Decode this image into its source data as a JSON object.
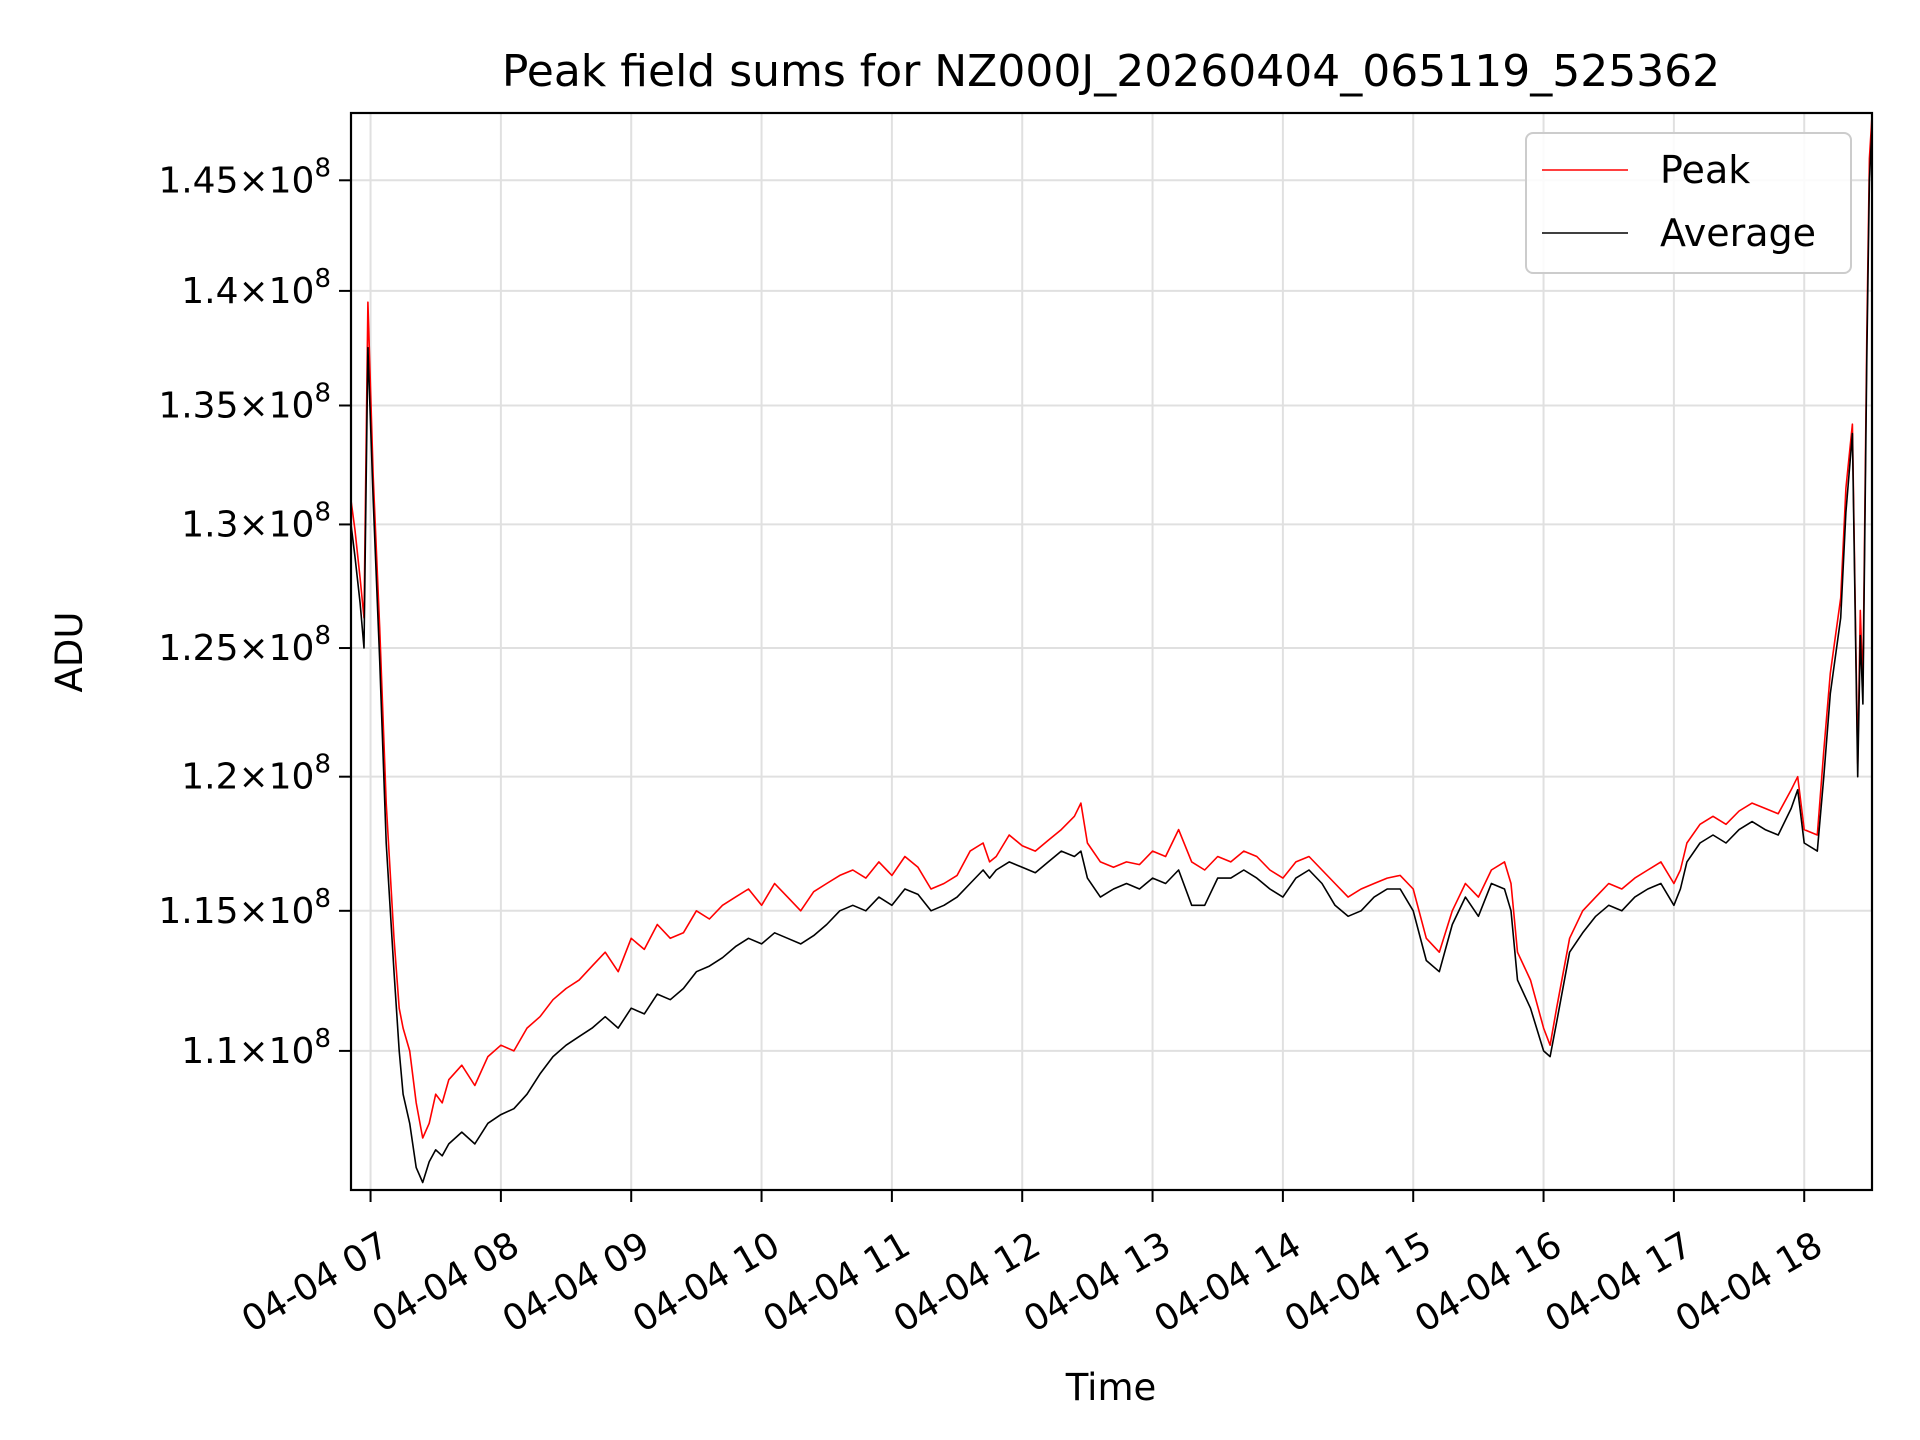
{
  "chart_data": {
    "type": "line",
    "title": "Peak field sums for NZ000J_20260404_065119_525362",
    "xlabel": "Time",
    "ylabel": "ADU",
    "x_unit": "hour of 2026-04-04",
    "xlim": [
      6.85,
      18.52
    ],
    "ylim": [
      105250000.0,
      148130000.0
    ],
    "y_scale": "log",
    "grid": true,
    "legend_position": "upper right",
    "x_ticks": [
      7,
      8,
      9,
      10,
      11,
      12,
      13,
      14,
      15,
      16,
      17,
      18
    ],
    "x_tick_labels": [
      "04-04 07",
      "04-04 08",
      "04-04 09",
      "04-04 10",
      "04-04 11",
      "04-04 12",
      "04-04 13",
      "04-04 14",
      "04-04 15",
      "04-04 16",
      "04-04 17",
      "04-04 18"
    ],
    "y_ticks": [
      110000000.0,
      115000000.0,
      120000000.0,
      125000000.0,
      130000000.0,
      135000000.0,
      140000000.0,
      145000000.0
    ],
    "y_tick_mantissas": [
      "1.1",
      "1.15",
      "1.2",
      "1.25",
      "1.3",
      "1.35",
      "1.4",
      "1.45"
    ],
    "y_tick_base": "10",
    "y_tick_exponent": "8",
    "series": [
      {
        "name": "Peak",
        "color": "#ff0000",
        "x": [
          6.85,
          6.88,
          6.92,
          6.95,
          6.98,
          7.02,
          7.07,
          7.12,
          7.18,
          7.22,
          7.25,
          7.3,
          7.35,
          7.4,
          7.45,
          7.5,
          7.55,
          7.6,
          7.7,
          7.8,
          7.9,
          8.0,
          8.1,
          8.2,
          8.3,
          8.4,
          8.5,
          8.6,
          8.7,
          8.8,
          8.9,
          9.0,
          9.1,
          9.2,
          9.3,
          9.4,
          9.5,
          9.6,
          9.7,
          9.8,
          9.9,
          10.0,
          10.1,
          10.2,
          10.3,
          10.4,
          10.5,
          10.6,
          10.7,
          10.8,
          10.9,
          11.0,
          11.1,
          11.2,
          11.3,
          11.4,
          11.5,
          11.6,
          11.7,
          11.75,
          11.8,
          11.9,
          12.0,
          12.1,
          12.2,
          12.3,
          12.4,
          12.45,
          12.5,
          12.6,
          12.7,
          12.8,
          12.9,
          13.0,
          13.1,
          13.2,
          13.3,
          13.4,
          13.5,
          13.6,
          13.7,
          13.8,
          13.9,
          14.0,
          14.1,
          14.2,
          14.3,
          14.4,
          14.5,
          14.6,
          14.7,
          14.8,
          14.9,
          15.0,
          15.1,
          15.2,
          15.3,
          15.4,
          15.5,
          15.6,
          15.7,
          15.75,
          15.8,
          15.9,
          16.0,
          16.05,
          16.1,
          16.2,
          16.3,
          16.4,
          16.5,
          16.6,
          16.7,
          16.8,
          16.9,
          17.0,
          17.05,
          17.1,
          17.2,
          17.3,
          17.4,
          17.5,
          17.6,
          17.7,
          17.8,
          17.9,
          17.95,
          18.0,
          18.1,
          18.15,
          18.2,
          18.28,
          18.32,
          18.37,
          18.41,
          18.43,
          18.45,
          18.48,
          18.5,
          18.52
        ],
        "values": [
          131000000.0,
          129800000.0,
          127800000.0,
          126200000.0,
          139500000.0,
          132000000.0,
          125800000.0,
          119000000.0,
          114000000.0,
          111500000.0,
          110800000.0,
          110000000.0,
          108200000.0,
          107000000.0,
          107500000.0,
          108500000.0,
          108200000.0,
          109000000.0,
          109500000.0,
          108800000.0,
          109800000.0,
          110200000.0,
          110000000.0,
          110800000.0,
          111200000.0,
          111800000.0,
          112200000.0,
          112500000.0,
          113000000.0,
          113500000.0,
          112800000.0,
          114000000.0,
          113600000.0,
          114500000.0,
          114000000.0,
          114200000.0,
          115000000.0,
          114700000.0,
          115200000.0,
          115500000.0,
          115800000.0,
          115200000.0,
          116000000.0,
          115500000.0,
          115000000.0,
          115700000.0,
          116000000.0,
          116300000.0,
          116500000.0,
          116200000.0,
          116800000.0,
          116300000.0,
          117000000.0,
          116600000.0,
          115800000.0,
          116000000.0,
          116300000.0,
          117200000.0,
          117500000.0,
          116800000.0,
          117000000.0,
          117800000.0,
          117400000.0,
          117200000.0,
          117600000.0,
          118000000.0,
          118500000.0,
          119000000.0,
          117500000.0,
          116800000.0,
          116600000.0,
          116800000.0,
          116700000.0,
          117200000.0,
          117000000.0,
          118000000.0,
          116800000.0,
          116500000.0,
          117000000.0,
          116800000.0,
          117200000.0,
          117000000.0,
          116500000.0,
          116200000.0,
          116800000.0,
          117000000.0,
          116500000.0,
          116000000.0,
          115500000.0,
          115800000.0,
          116000000.0,
          116200000.0,
          116300000.0,
          115800000.0,
          114000000.0,
          113500000.0,
          115000000.0,
          116000000.0,
          115500000.0,
          116500000.0,
          116800000.0,
          116000000.0,
          113500000.0,
          112500000.0,
          110800000.0,
          110200000.0,
          111500000.0,
          114000000.0,
          115000000.0,
          115500000.0,
          116000000.0,
          115800000.0,
          116200000.0,
          116500000.0,
          116800000.0,
          116000000.0,
          116500000.0,
          117500000.0,
          118200000.0,
          118500000.0,
          118200000.0,
          118700000.0,
          119000000.0,
          118800000.0,
          118600000.0,
          119500000.0,
          120000000.0,
          118000000.0,
          117800000.0,
          121000000.0,
          124000000.0,
          127000000.0,
          131500000.0,
          134200000.0,
          120500000.0,
          126500000.0,
          123500000.0,
          138000000.0,
          146000000.0,
          148000000.0
        ]
      },
      {
        "name": "Average",
        "color": "#000000",
        "x": [
          6.85,
          6.88,
          6.92,
          6.95,
          6.98,
          7.02,
          7.07,
          7.12,
          7.18,
          7.22,
          7.25,
          7.3,
          7.35,
          7.4,
          7.45,
          7.5,
          7.55,
          7.6,
          7.7,
          7.8,
          7.9,
          8.0,
          8.1,
          8.2,
          8.3,
          8.4,
          8.5,
          8.6,
          8.7,
          8.8,
          8.9,
          9.0,
          9.1,
          9.2,
          9.3,
          9.4,
          9.5,
          9.6,
          9.7,
          9.8,
          9.9,
          10.0,
          10.1,
          10.2,
          10.3,
          10.4,
          10.5,
          10.6,
          10.7,
          10.8,
          10.9,
          11.0,
          11.1,
          11.2,
          11.3,
          11.4,
          11.5,
          11.6,
          11.7,
          11.75,
          11.8,
          11.9,
          12.0,
          12.1,
          12.2,
          12.3,
          12.4,
          12.45,
          12.5,
          12.6,
          12.7,
          12.8,
          12.9,
          13.0,
          13.1,
          13.2,
          13.3,
          13.4,
          13.5,
          13.6,
          13.7,
          13.8,
          13.9,
          14.0,
          14.1,
          14.2,
          14.3,
          14.4,
          14.5,
          14.6,
          14.7,
          14.8,
          14.9,
          15.0,
          15.1,
          15.2,
          15.3,
          15.4,
          15.5,
          15.6,
          15.7,
          15.75,
          15.8,
          15.9,
          16.0,
          16.05,
          16.1,
          16.2,
          16.3,
          16.4,
          16.5,
          16.6,
          16.7,
          16.8,
          16.9,
          17.0,
          17.05,
          17.1,
          17.2,
          17.3,
          17.4,
          17.5,
          17.6,
          17.7,
          17.8,
          17.9,
          17.95,
          18.0,
          18.1,
          18.15,
          18.2,
          18.28,
          18.32,
          18.37,
          18.41,
          18.43,
          18.45,
          18.48,
          18.5,
          18.52
        ],
        "values": [
          130000000.0,
          128700000.0,
          126800000.0,
          125000000.0,
          137500000.0,
          131000000.0,
          124500000.0,
          117500000.0,
          112800000.0,
          110000000.0,
          108500000.0,
          107500000.0,
          106000000.0,
          105500000.0,
          106200000.0,
          106600000.0,
          106400000.0,
          106800000.0,
          107200000.0,
          106800000.0,
          107500000.0,
          107800000.0,
          108000000.0,
          108500000.0,
          109200000.0,
          109800000.0,
          110200000.0,
          110500000.0,
          110800000.0,
          111200000.0,
          110800000.0,
          111500000.0,
          111300000.0,
          112000000.0,
          111800000.0,
          112200000.0,
          112800000.0,
          113000000.0,
          113300000.0,
          113700000.0,
          114000000.0,
          113800000.0,
          114200000.0,
          114000000.0,
          113800000.0,
          114100000.0,
          114500000.0,
          115000000.0,
          115200000.0,
          115000000.0,
          115500000.0,
          115200000.0,
          115800000.0,
          115600000.0,
          115000000.0,
          115200000.0,
          115500000.0,
          116000000.0,
          116500000.0,
          116200000.0,
          116500000.0,
          116800000.0,
          116600000.0,
          116400000.0,
          116800000.0,
          117200000.0,
          117000000.0,
          117200000.0,
          116200000.0,
          115500000.0,
          115800000.0,
          116000000.0,
          115800000.0,
          116200000.0,
          116000000.0,
          116500000.0,
          115200000.0,
          115200000.0,
          116200000.0,
          116200000.0,
          116500000.0,
          116200000.0,
          115800000.0,
          115500000.0,
          116200000.0,
          116500000.0,
          116000000.0,
          115200000.0,
          114800000.0,
          115000000.0,
          115500000.0,
          115800000.0,
          115800000.0,
          115000000.0,
          113200000.0,
          112800000.0,
          114500000.0,
          115500000.0,
          114800000.0,
          116000000.0,
          115800000.0,
          115000000.0,
          112500000.0,
          111500000.0,
          110000000.0,
          109800000.0,
          111000000.0,
          113500000.0,
          114200000.0,
          114800000.0,
          115200000.0,
          115000000.0,
          115500000.0,
          115800000.0,
          116000000.0,
          115200000.0,
          115800000.0,
          116800000.0,
          117500000.0,
          117800000.0,
          117500000.0,
          118000000.0,
          118300000.0,
          118000000.0,
          117800000.0,
          118800000.0,
          119500000.0,
          117500000.0,
          117200000.0,
          120000000.0,
          123200000.0,
          126200000.0,
          130500000.0,
          133800000.0,
          120000000.0,
          125500000.0,
          122800000.0,
          137000000.0,
          145000000.0,
          147500000.0
        ]
      }
    ]
  }
}
